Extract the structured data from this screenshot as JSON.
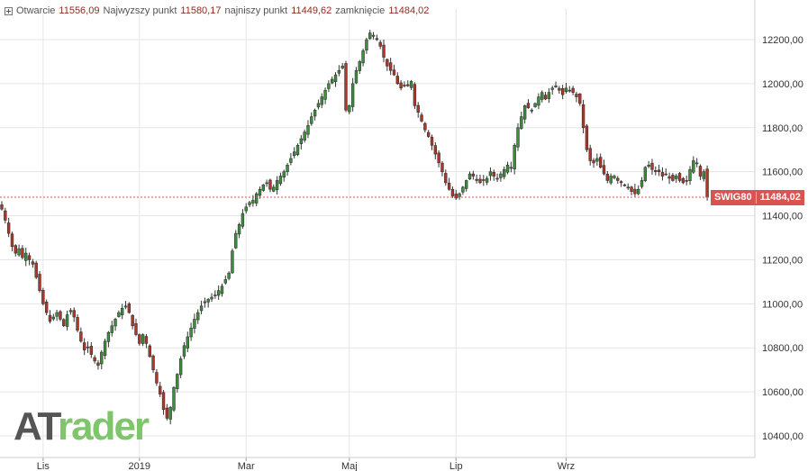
{
  "header": {
    "open_label": "Otwarcie",
    "open_value": "11556,09",
    "high_label": "Najwyzszy punkt",
    "high_value": "11580,17",
    "low_label": "najniszy punkt",
    "low_value": "11449,62",
    "close_label": "zamknięcie",
    "close_value": "11484,02"
  },
  "price_tag": {
    "symbol": "SWIG80",
    "value": "11484,02"
  },
  "watermark": {
    "part1": "AT",
    "part2": "rader"
  },
  "colors": {
    "up": "#3c8f3c",
    "down": "#b03628",
    "last_line": "#d9534f",
    "grid": "#e6e6e6"
  },
  "chart_data": {
    "type": "candlestick",
    "y_ticks": [
      10400,
      10600,
      10800,
      11000,
      11200,
      11400,
      11600,
      11800,
      12000,
      12200
    ],
    "y_tick_labels": [
      "10400,00",
      "10600,00",
      "10800,00",
      "11000,00",
      "11200,00",
      "11400,00",
      "11600,00",
      "11800,00",
      "12000,00",
      "12200,00"
    ],
    "ylim": [
      10380,
      12300
    ],
    "x_labels": [
      "Lis",
      "2019",
      "Mar",
      "Maj",
      "Lip",
      "Wrz"
    ],
    "x_label_index": [
      12,
      40,
      71,
      101,
      132,
      164
    ],
    "last_close": 11484.02,
    "close_path": [
      11430,
      11380,
      11320,
      11260,
      11230,
      11250,
      11210,
      11230,
      11200,
      11180,
      11120,
      11060,
      11000,
      10960,
      10920,
      10940,
      10960,
      10930,
      10900,
      10950,
      10970,
      10940,
      10880,
      10830,
      10790,
      10800,
      10770,
      10740,
      10720,
      10780,
      10830,
      10870,
      10900,
      10930,
      10960,
      10980,
      10990,
      10960,
      10900,
      10860,
      10820,
      10860,
      10820,
      10760,
      10700,
      10640,
      10590,
      10520,
      10480,
      10530,
      10620,
      10680,
      10750,
      10810,
      10850,
      10890,
      10930,
      10960,
      10990,
      11010,
      11020,
      11030,
      11040,
      11060,
      11080,
      11110,
      11140,
      11240,
      11320,
      11360,
      11410,
      11440,
      11460,
      11470,
      11500,
      11520,
      11540,
      11550,
      11520,
      11530,
      11560,
      11580,
      11600,
      11630,
      11660,
      11690,
      11720,
      11750,
      11780,
      11810,
      11850,
      11880,
      11910,
      11940,
      11970,
      12000,
      12020,
      12040,
      12060,
      12080,
      11880,
      11900,
      12000,
      12060,
      12100,
      12150,
      12200,
      12230,
      12220,
      12200,
      12170,
      12120,
      12080,
      12060,
      12040,
      12000,
      11980,
      11990,
      11990,
      12010,
      11900,
      11870,
      11830,
      11790,
      11760,
      11720,
      11680,
      11640,
      11600,
      11550,
      11520,
      11490,
      11480,
      11500,
      11530,
      11560,
      11590,
      11580,
      11560,
      11550,
      11560,
      11570,
      11600,
      11580,
      11570,
      11590,
      11610,
      11630,
      11620,
      11720,
      11800,
      11850,
      11900,
      11890,
      11880,
      11910,
      11940,
      11960,
      11930,
      11960,
      11980,
      11990,
      11970,
      11950,
      11980,
      11970,
      11960,
      11940,
      11910,
      11800,
      11700,
      11650,
      11640,
      11660,
      11620,
      11590,
      11560,
      11580,
      11580,
      11560,
      11550,
      11540,
      11530,
      11510,
      11500,
      11520,
      11560,
      11620,
      11630,
      11610,
      11600,
      11600,
      11580,
      11590,
      11570,
      11560,
      11580,
      11560,
      11550,
      11560,
      11610,
      11650,
      11640,
      11580,
      11600,
      11484.02
    ]
  }
}
